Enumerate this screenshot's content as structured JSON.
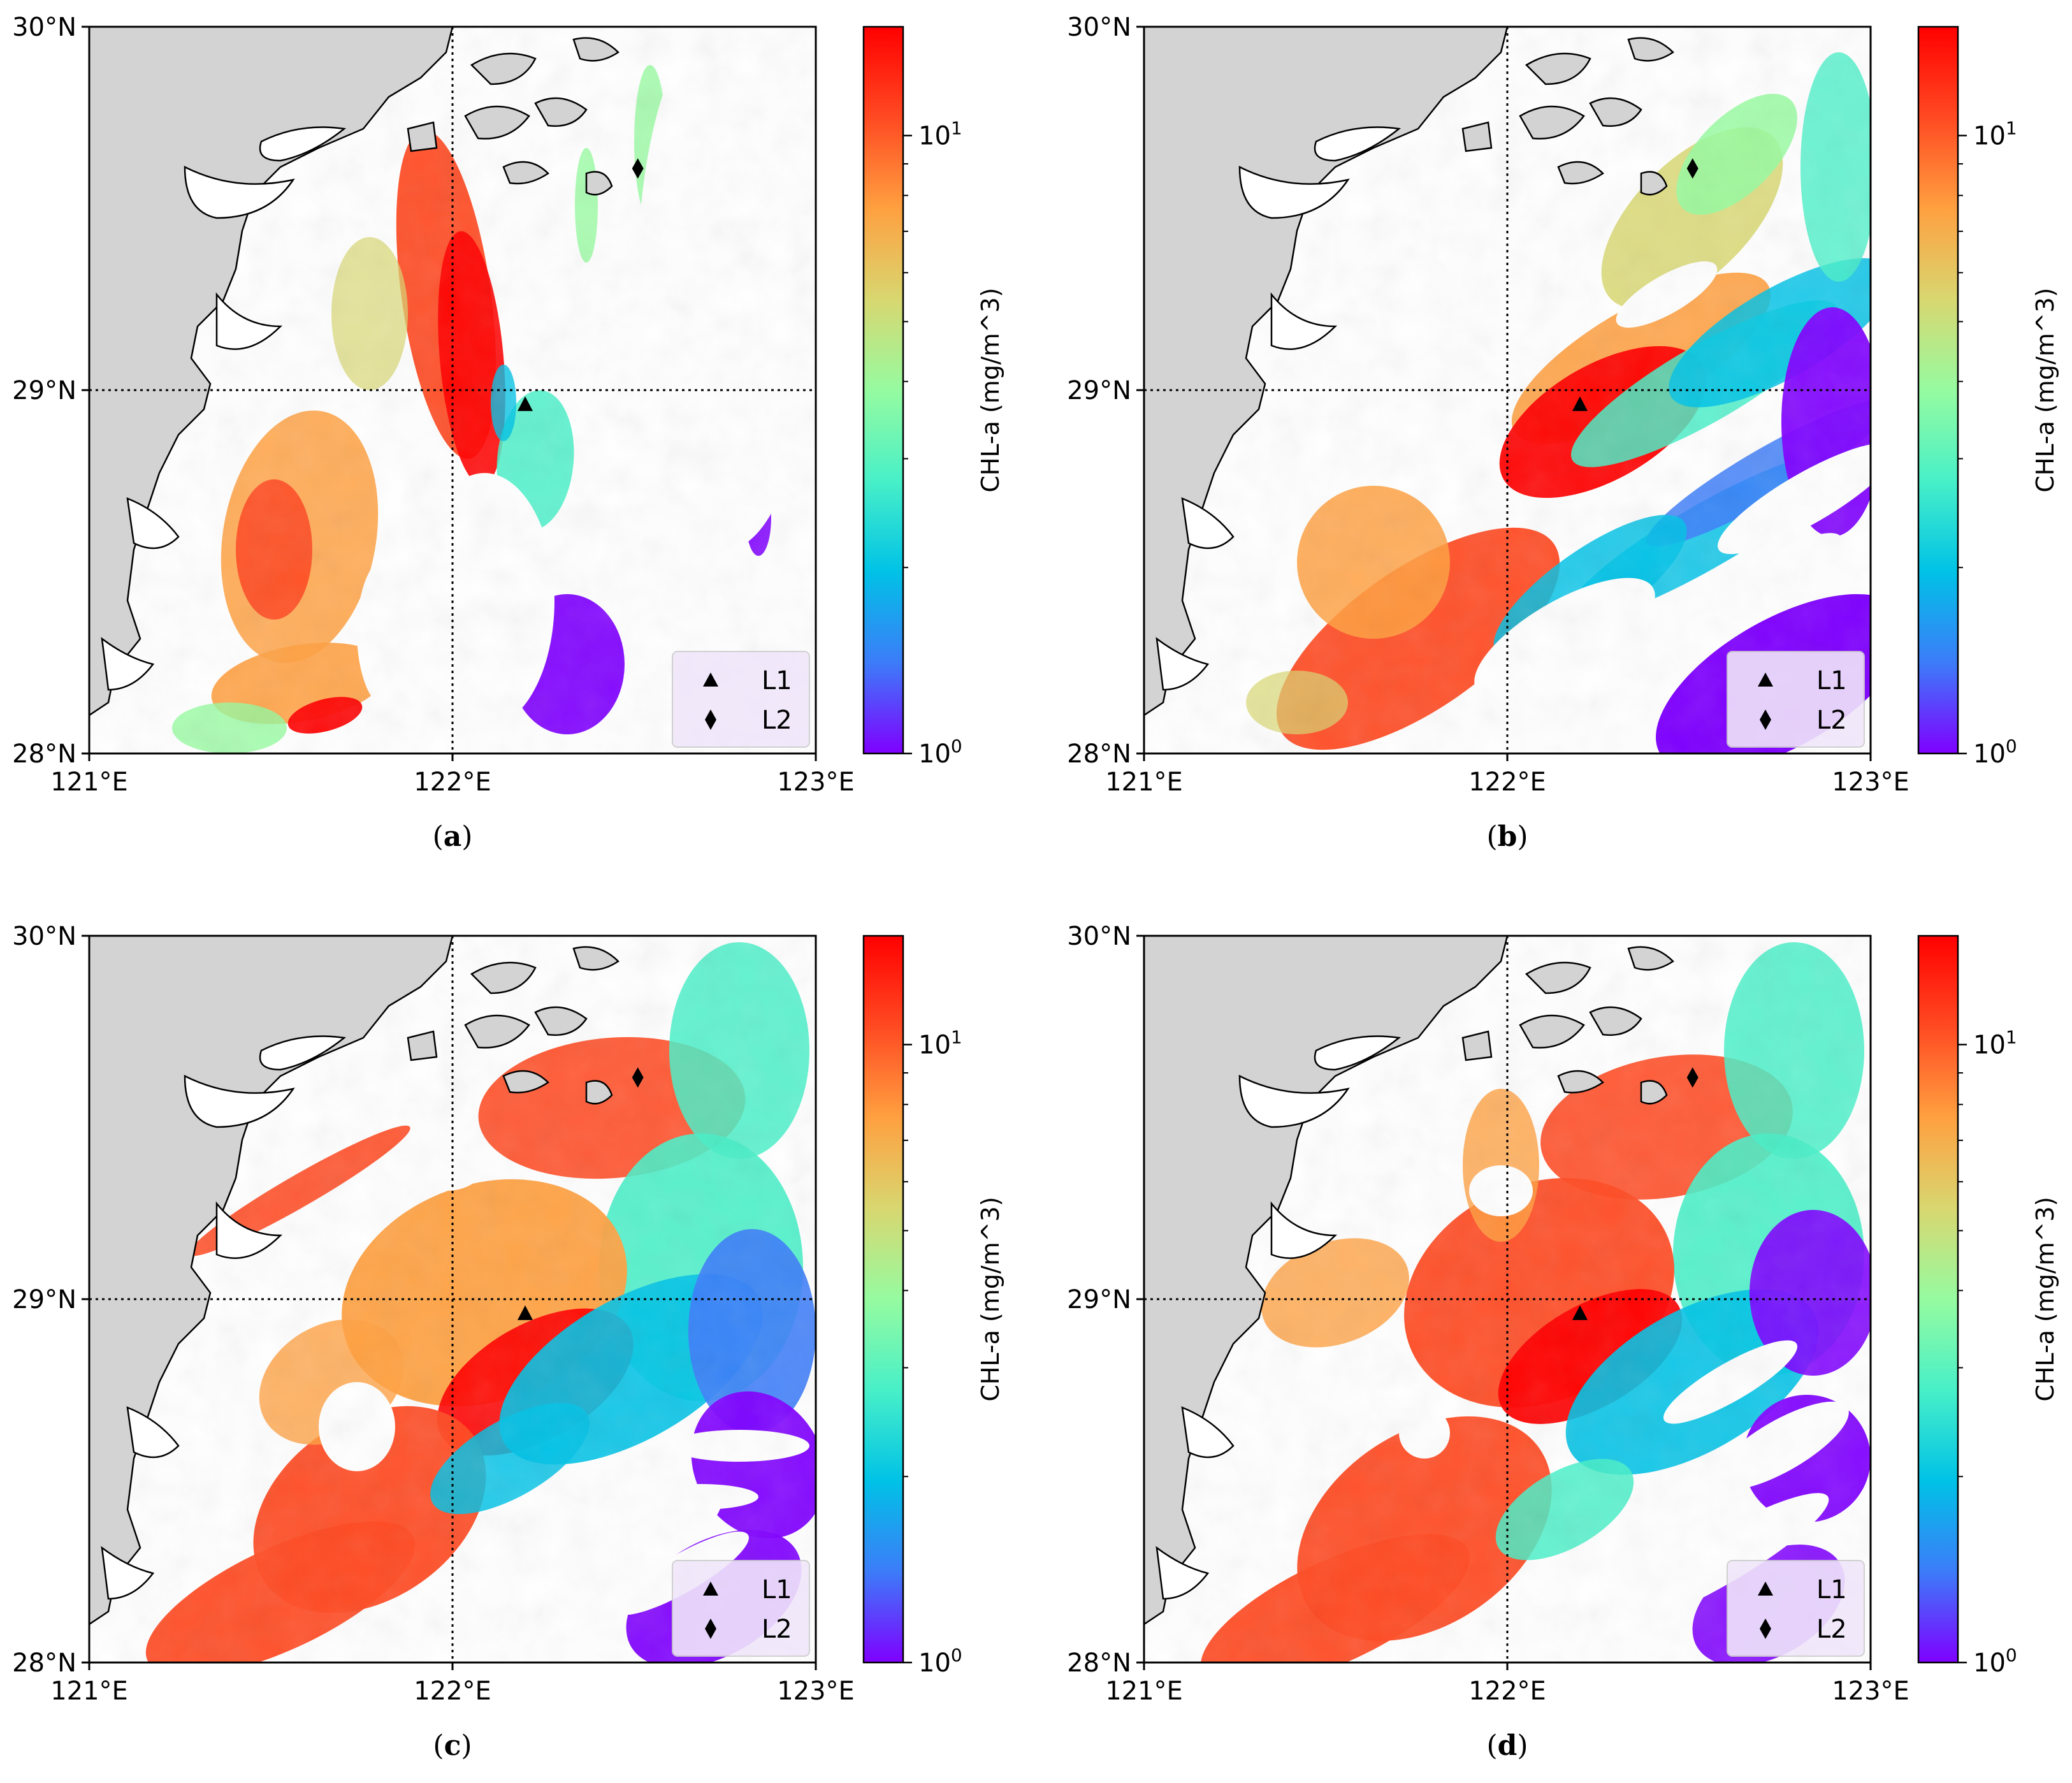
{
  "figure": {
    "panels": [
      {
        "label_open": "(",
        "label_letter": "a",
        "label_close": ")",
        "coverage": "sparse"
      },
      {
        "label_open": "(",
        "label_letter": "b",
        "label_close": ")",
        "coverage": "partial"
      },
      {
        "label_open": "(",
        "label_letter": "c",
        "label_close": ")",
        "coverage": "full"
      },
      {
        "label_open": "(",
        "label_letter": "d",
        "label_close": ")",
        "coverage": "full-alt"
      }
    ],
    "axes": {
      "x_ticks": [
        "121°E",
        "122°E",
        "123°E"
      ],
      "y_ticks": [
        "28°N",
        "29°N",
        "30°N"
      ],
      "lon_range": [
        121,
        123
      ],
      "lat_range": [
        28,
        30
      ],
      "gridlines": {
        "lon": 122,
        "lat": 29,
        "style": "dotted"
      }
    },
    "colorbar": {
      "label": "CHL-a (mg/m^3)",
      "scale": "log",
      "tick_labels": [
        {
          "base": "10",
          "exp": "1",
          "value": 10
        },
        {
          "base": "10",
          "exp": "0",
          "value": 1
        }
      ],
      "range": [
        1,
        15
      ],
      "colormap": "rainbow",
      "colors": [
        "#7f00ff",
        "#3c7cf9",
        "#00c2e6",
        "#48f0c8",
        "#96fba0",
        "#d8d770",
        "#ffa040",
        "#ff4a22",
        "#ff0000"
      ]
    },
    "legend": {
      "items": [
        {
          "marker": "triangle-icon",
          "label": "L1"
        },
        {
          "marker": "diamond-icon",
          "label": "L2"
        }
      ]
    },
    "stations": [
      {
        "name": "L1",
        "lon": 122.2,
        "lat": 28.96
      },
      {
        "name": "L2",
        "lon": 122.51,
        "lat": 29.61
      }
    ],
    "land_color": "#d3d3d3"
  }
}
